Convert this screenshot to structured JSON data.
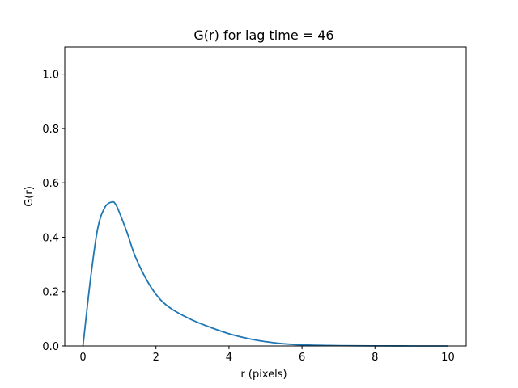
{
  "chart_data": {
    "type": "line",
    "title": "G(r) for lag time = 46",
    "xlabel": "r (pixels)",
    "ylabel": "G(r)",
    "xlim": [
      -0.5,
      10.5
    ],
    "ylim": [
      0,
      1.1
    ],
    "xticks": [
      0,
      2,
      4,
      6,
      8,
      10
    ],
    "xtick_labels": [
      "0",
      "2",
      "4",
      "6",
      "8",
      "10"
    ],
    "yticks": [
      0.0,
      0.2,
      0.4,
      0.6,
      0.8,
      1.0
    ],
    "ytick_labels": [
      "0.0",
      "0.2",
      "0.4",
      "0.6",
      "0.8",
      "1.0"
    ],
    "grid": false,
    "line_color": "#1f77b4",
    "series": [
      {
        "x": [
          0,
          0.2,
          0.4,
          0.6,
          0.8,
          0.9,
          1.0,
          1.2,
          1.4,
          1.6,
          1.8,
          2.0,
          2.2,
          2.5,
          3.0,
          3.5,
          4.0,
          4.5,
          5.0,
          5.5,
          6.0,
          7.0,
          8.0,
          9.0,
          10.0
        ],
        "y": [
          0.0,
          0.24,
          0.43,
          0.51,
          0.53,
          0.52,
          0.49,
          0.42,
          0.34,
          0.28,
          0.23,
          0.19,
          0.16,
          0.13,
          0.095,
          0.068,
          0.045,
          0.028,
          0.016,
          0.008,
          0.004,
          0.0012,
          0.0003,
          0.0001,
          0.0
        ]
      }
    ]
  }
}
